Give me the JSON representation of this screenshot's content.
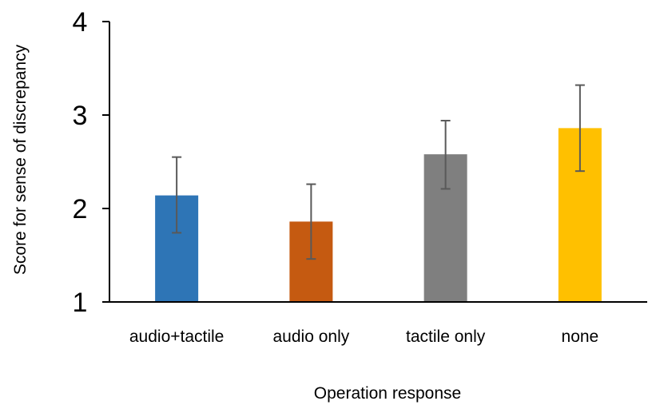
{
  "chart_data": {
    "type": "bar",
    "title": "",
    "xlabel": "Operation response",
    "ylabel": "Score for sense of discrepancy",
    "ylim": [
      1,
      4
    ],
    "yticks": [
      "1",
      "2",
      "3",
      "4"
    ],
    "categories": [
      "audio+tactile",
      "audio only",
      "tactile only",
      "none"
    ],
    "values": [
      2.14,
      1.86,
      2.58,
      2.86
    ],
    "error_bars": [
      {
        "low": 1.74,
        "high": 2.55
      },
      {
        "low": 1.46,
        "high": 2.26
      },
      {
        "low": 2.21,
        "high": 2.94
      },
      {
        "low": 2.4,
        "high": 3.32
      }
    ],
    "colors": [
      "#2E75B6",
      "#C55A11",
      "#7F7F7F",
      "#FFC000"
    ],
    "error_bar_color": "#595959",
    "axis_color": "#000000",
    "grid": false,
    "legend": "none"
  }
}
